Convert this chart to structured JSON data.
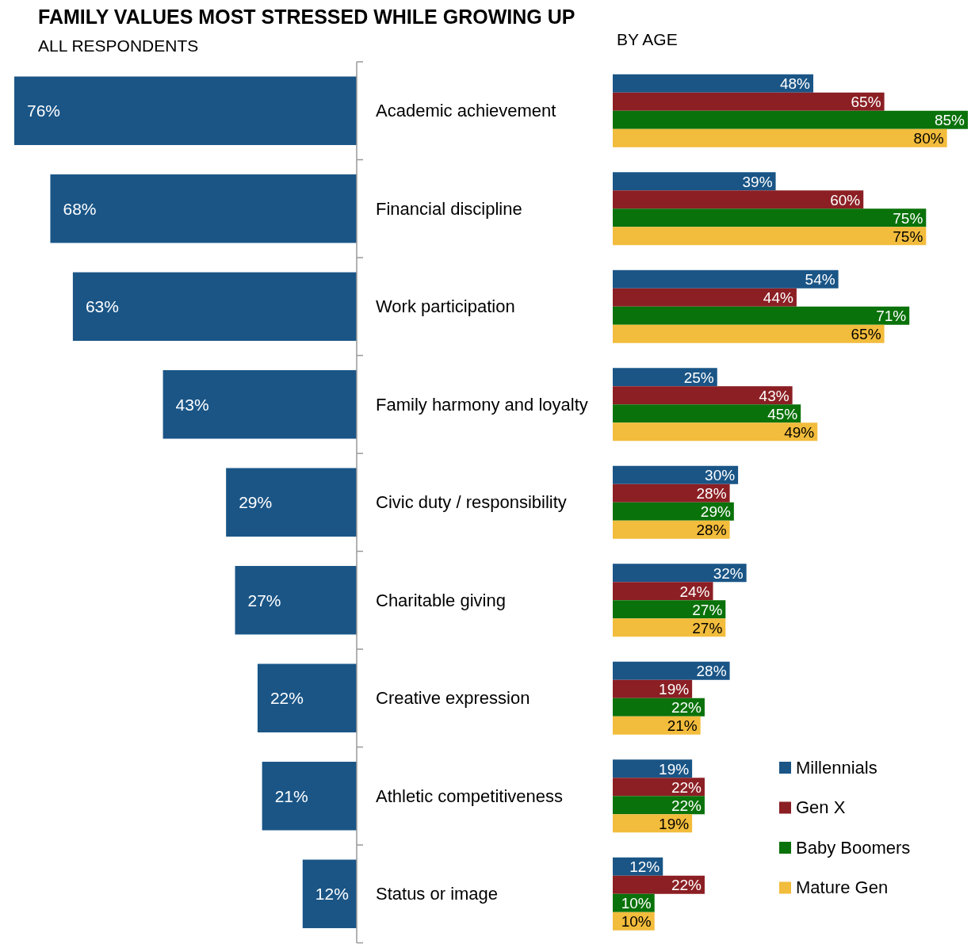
{
  "chart_data": [
    {
      "type": "bar",
      "orientation": "horizontal",
      "title": "FAMILY VALUES MOST STRESSED WHILE GROWING UP",
      "subtitle": "ALL RESPONDENTS",
      "categories": [
        "Academic achievement",
        "Financial discipline",
        "Work participation",
        "Family harmony and loyalty",
        "Civic duty / responsibility",
        "Charitable giving",
        "Creative expression",
        "Athletic competitiveness",
        "Status or image"
      ],
      "color": "#1a5586",
      "values": [
        76,
        68,
        63,
        43,
        29,
        27,
        22,
        21,
        12
      ],
      "value_labels": [
        "76%",
        "68%",
        "63%",
        "43%",
        "29%",
        "27%",
        "22%",
        "21%",
        "12%"
      ]
    },
    {
      "type": "bar",
      "orientation": "horizontal",
      "subtitle": "BY AGE",
      "legend": "bottom right",
      "categories": [
        null,
        null,
        null,
        null,
        null,
        null,
        null,
        null,
        null
      ],
      "series": [
        {
          "name": "Millennials",
          "color": "#1a5586",
          "values": [
            48,
            39,
            54,
            25,
            30,
            32,
            28,
            19,
            12
          ],
          "value_labels": [
            "48%",
            "39%",
            "54%",
            "25%",
            "30%",
            "32%",
            "28%",
            "19%",
            "12%"
          ]
        },
        {
          "name": "Gen X",
          "color": "#8b1f24",
          "values": [
            65,
            60,
            44,
            43,
            28,
            24,
            19,
            22,
            22
          ],
          "value_labels": [
            "65%",
            "60%",
            "44%",
            "43%",
            "28%",
            "24%",
            "19%",
            "22%",
            "22%"
          ]
        },
        {
          "name": "Baby Boomers",
          "color": "#0a720a",
          "values": [
            85,
            75,
            71,
            45,
            29,
            27,
            22,
            22,
            10
          ],
          "value_labels": [
            "85%",
            "75%",
            "71%",
            "45%",
            "29%",
            "27%",
            "22%",
            "22%",
            "10%"
          ]
        },
        {
          "name": "Mature Gen",
          "color": "#f2bc3c",
          "values": [
            80,
            75,
            65,
            49,
            28,
            27,
            21,
            19,
            10
          ],
          "value_labels": [
            "80%",
            "75%",
            "65%",
            "49%",
            "28%",
            "27%",
            "21%",
            "19%",
            "10%"
          ]
        }
      ]
    }
  ]
}
